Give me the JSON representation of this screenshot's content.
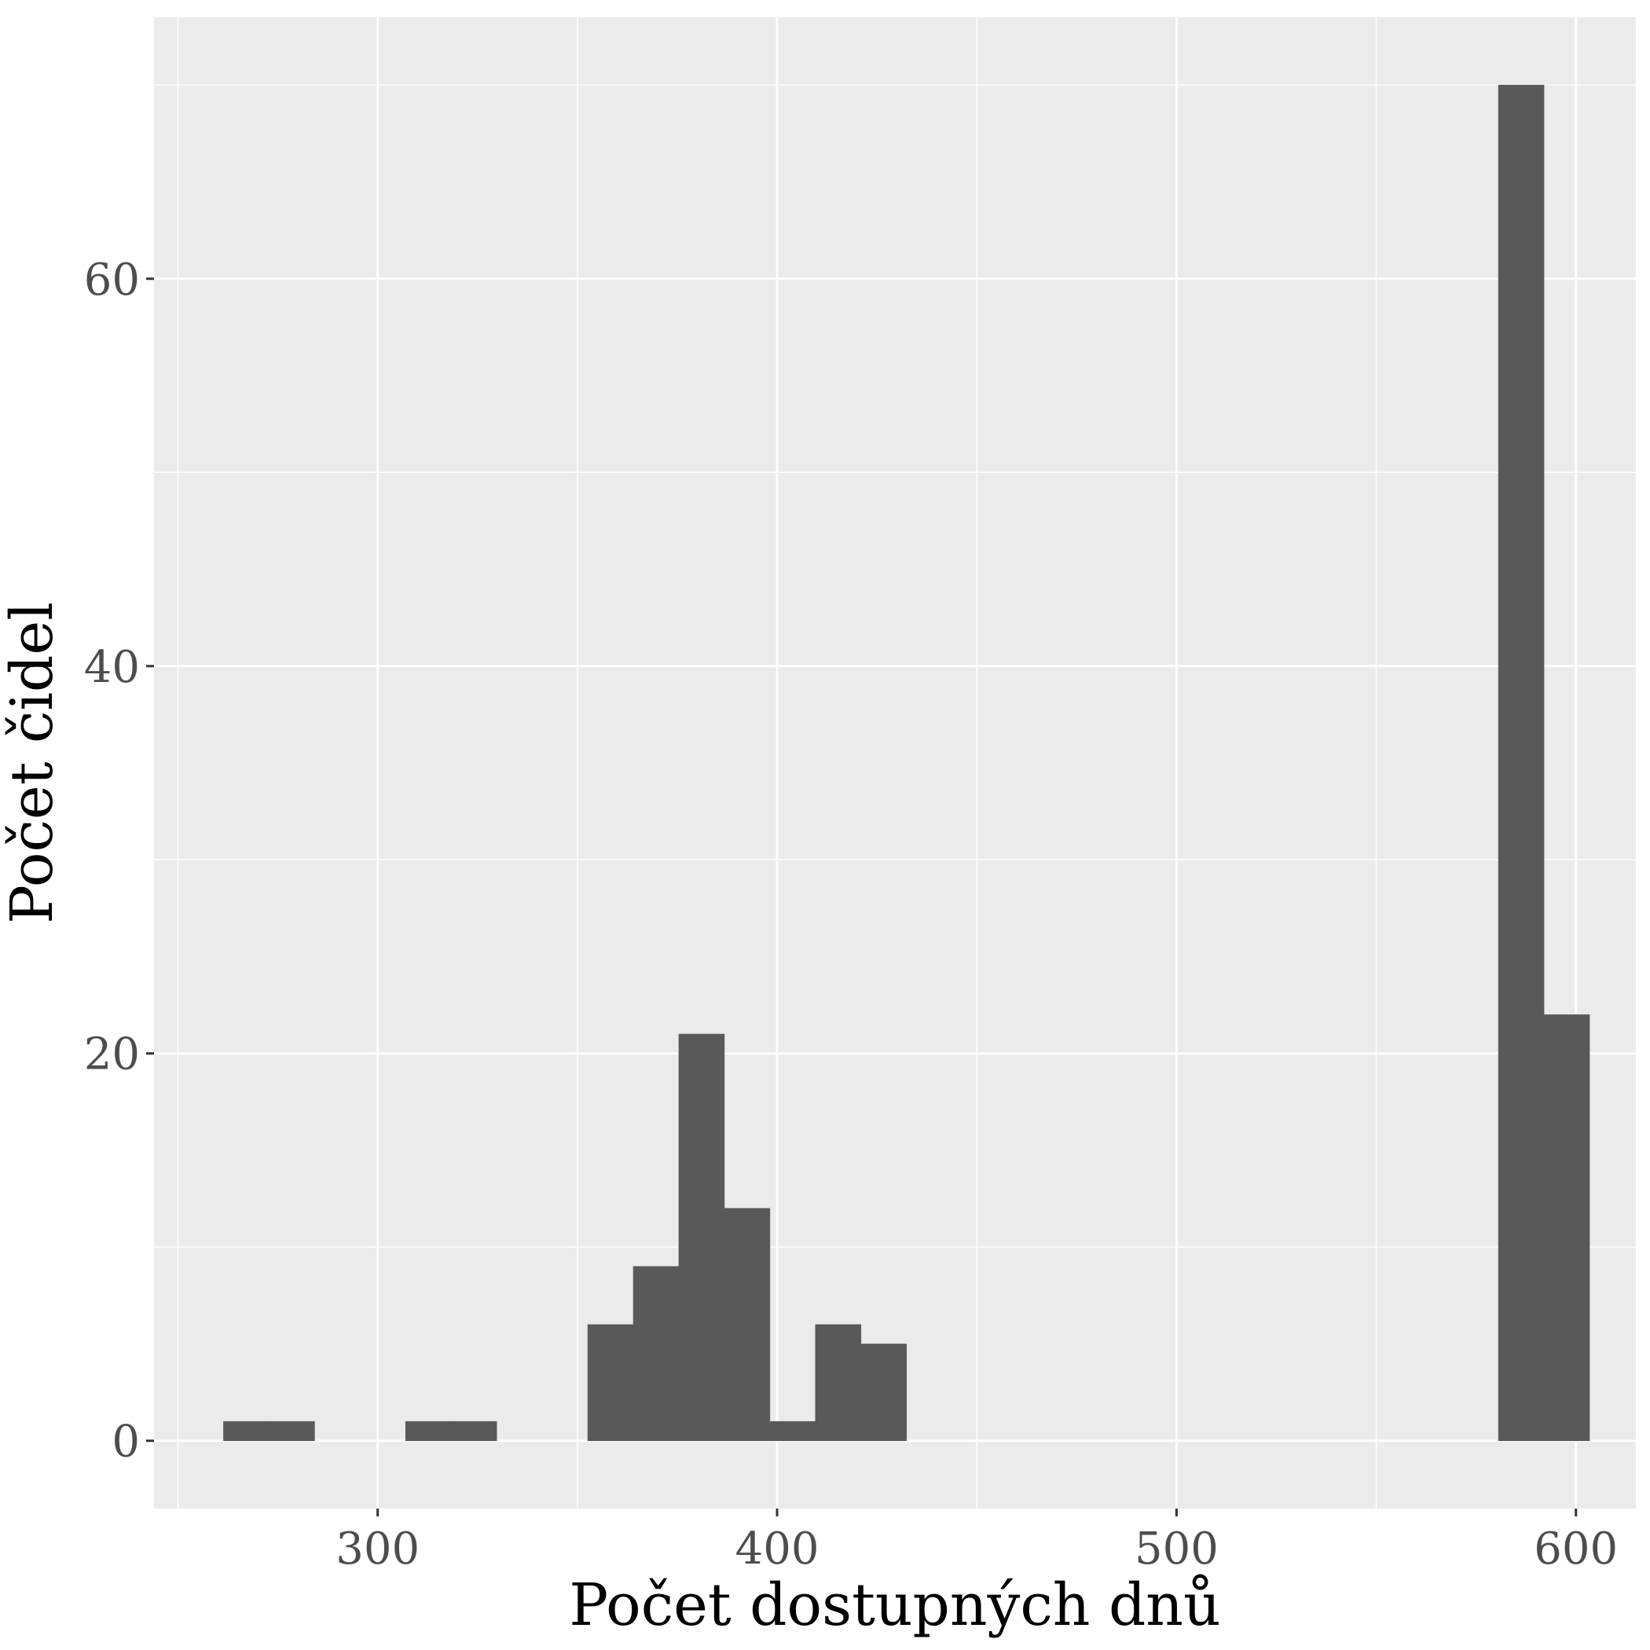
{
  "chart_data": {
    "type": "bar",
    "title": "",
    "xlabel": "Počet dostupných dnů",
    "ylabel": "Počet čidel",
    "xlim": [
      244,
      615
    ],
    "ylim": [
      -3.5,
      73.5
    ],
    "x_ticks": [
      300,
      400,
      500,
      600
    ],
    "x_tick_labels": [
      "300",
      "400",
      "500",
      "600"
    ],
    "y_ticks": [
      0,
      20,
      40,
      60
    ],
    "y_tick_labels": [
      "0",
      "20",
      "40",
      "60"
    ],
    "x_minor_ticks": [
      250,
      350,
      450,
      550
    ],
    "y_minor_ticks": [
      10,
      30,
      50,
      70
    ],
    "grid": true,
    "bin_width": 11.4,
    "bins": [
      {
        "x0": 261.4,
        "x1": 272.8,
        "count": 1
      },
      {
        "x0": 272.8,
        "x1": 284.2,
        "count": 1
      },
      {
        "x0": 307.0,
        "x1": 318.4,
        "count": 1
      },
      {
        "x0": 318.4,
        "x1": 329.8,
        "count": 1
      },
      {
        "x0": 352.6,
        "x1": 364.0,
        "count": 6
      },
      {
        "x0": 364.0,
        "x1": 375.4,
        "count": 9
      },
      {
        "x0": 375.4,
        "x1": 386.8,
        "count": 21
      },
      {
        "x0": 386.8,
        "x1": 398.2,
        "count": 12
      },
      {
        "x0": 398.2,
        "x1": 409.6,
        "count": 1
      },
      {
        "x0": 409.6,
        "x1": 421.0,
        "count": 6
      },
      {
        "x0": 421.0,
        "x1": 432.4,
        "count": 5
      },
      {
        "x0": 580.6,
        "x1": 592.0,
        "count": 70
      },
      {
        "x0": 592.0,
        "x1": 603.4,
        "count": 22
      }
    ],
    "colors": {
      "panel_background": "#ebebeb",
      "grid": "#ffffff",
      "bar_fill": "#595959",
      "tick_mark": "#333333"
    }
  }
}
